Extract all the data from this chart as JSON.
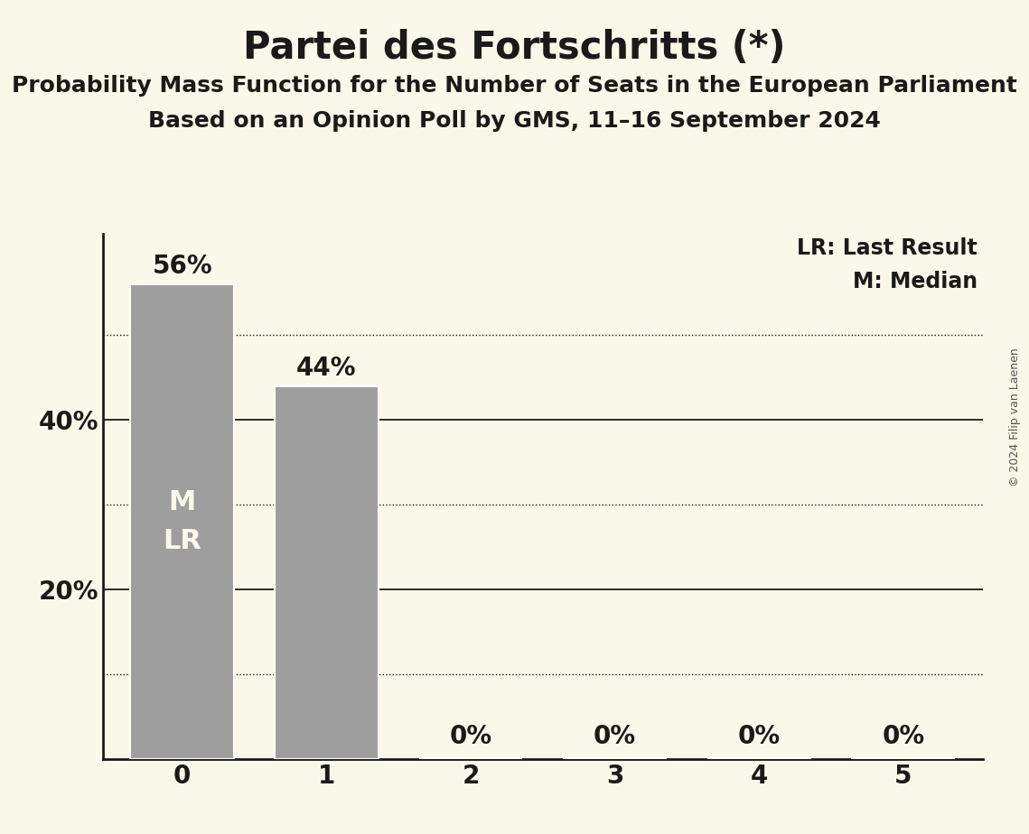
{
  "title": "Partei des Fortschritts (*)",
  "subtitle1": "Probability Mass Function for the Number of Seats in the European Parliament",
  "subtitle2": "Based on an Opinion Poll by GMS, 11–16 September 2024",
  "copyright": "© 2024 Filip van Laenen",
  "categories": [
    0,
    1,
    2,
    3,
    4,
    5
  ],
  "values": [
    0.56,
    0.44,
    0.0,
    0.0,
    0.0,
    0.0
  ],
  "bar_color": "#9e9e9e",
  "bar_edge_color": "#ffffff",
  "background_color": "#faf8e8",
  "bar_labels": [
    "56%",
    "44%",
    "0%",
    "0%",
    "0%",
    "0%"
  ],
  "bar_label_fontsize": 20,
  "bar_label_color": "#1a1a1a",
  "in_bar_labels": [
    [
      "M",
      "LR"
    ],
    null,
    null,
    null,
    null,
    null
  ],
  "in_bar_label_color": "#faf8e8",
  "in_bar_label_fontsize": 22,
  "ytick_positions": [
    0.2,
    0.4
  ],
  "ytick_labels": [
    "20%",
    "40%"
  ],
  "solid_gridlines": [
    0.2,
    0.4
  ],
  "dotted_gridlines": [
    0.1,
    0.3,
    0.5
  ],
  "grid_solid_color": "#1a1a1a",
  "grid_dotted_color": "#1a1a1a",
  "legend_text1": "LR: Last Result",
  "legend_text2": "M: Median",
  "legend_fontsize": 17,
  "title_fontsize": 30,
  "subtitle_fontsize": 18,
  "axis_tick_fontsize": 20,
  "copyright_fontsize": 9,
  "ylim": [
    0,
    0.62
  ],
  "bar_width": 0.72
}
